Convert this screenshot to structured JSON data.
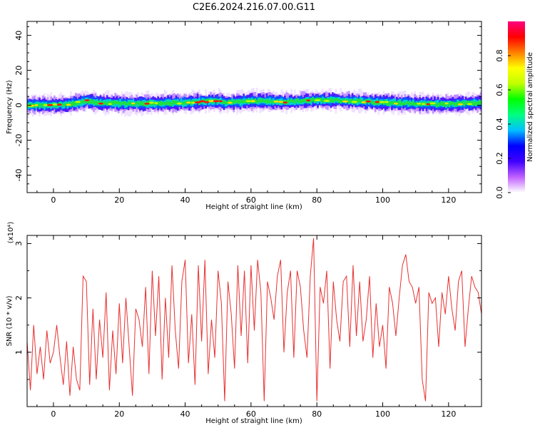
{
  "title": "C2E6.2024.216.07.00.G11",
  "chart_data": [
    {
      "type": "heatmap",
      "xlabel": "Height of straight line (km)",
      "ylabel": "Frequency (Hz)",
      "xlim": [
        -8,
        130
      ],
      "ylim": [
        -50,
        48
      ],
      "xticks": [
        "0",
        "20",
        "40",
        "60",
        "80",
        "100",
        "120"
      ],
      "xtick_values": [
        0,
        20,
        40,
        60,
        80,
        100,
        120
      ],
      "yticks": [
        "40",
        "20",
        "0",
        "-20",
        "-40"
      ],
      "ytick_values": [
        40,
        20,
        0,
        -20,
        -40
      ],
      "band_center": [
        [
          -8,
          0.0
        ],
        [
          0,
          0.0
        ],
        [
          4,
          0.5
        ],
        [
          10,
          2.5
        ],
        [
          13,
          1.5
        ],
        [
          20,
          1.0
        ],
        [
          30,
          1.0
        ],
        [
          40,
          1.5
        ],
        [
          50,
          2.5
        ],
        [
          52,
          1.5
        ],
        [
          60,
          2.5
        ],
        [
          70,
          2.0
        ],
        [
          80,
          3.0
        ],
        [
          90,
          2.5
        ],
        [
          100,
          1.5
        ],
        [
          110,
          1.0
        ],
        [
          117,
          0.5
        ],
        [
          125,
          1.0
        ],
        [
          130,
          1.5
        ]
      ],
      "colorbar": {
        "label": "Normalized spectral amplitude",
        "ticks": [
          "0.0",
          "0.2",
          "0.4",
          "0.6",
          "0.8"
        ],
        "tick_values": [
          0.0,
          0.2,
          0.4,
          0.6,
          0.8
        ],
        "range": [
          0,
          1
        ],
        "colors": [
          "#ffffff",
          "#c060ff",
          "#4000ff",
          "#0000ff",
          "#00c0ff",
          "#00ff80",
          "#00ff00",
          "#c0ff00",
          "#ffff00",
          "#ff8000",
          "#ff0000",
          "#ff0080"
        ]
      }
    },
    {
      "type": "line",
      "xlabel": "Height of straight line (km)",
      "ylabel": "SNR (10 * v/v)",
      "yunit": "(x10⁴)",
      "xlim": [
        -8,
        130
      ],
      "ylim": [
        0,
        3.15
      ],
      "xticks": [
        "0",
        "20",
        "40",
        "60",
        "80",
        "100",
        "120"
      ],
      "xtick_values": [
        0,
        20,
        40,
        60,
        80,
        100,
        120
      ],
      "yticks": [
        "1",
        "2",
        "3"
      ],
      "ytick_values": [
        1,
        2,
        3
      ],
      "color": "#e83030",
      "x": [
        -8,
        -7,
        -6,
        -5,
        -4,
        -3,
        -2,
        -1,
        0,
        1,
        2,
        3,
        4,
        5,
        6,
        7,
        8,
        9,
        10,
        11,
        12,
        13,
        14,
        15,
        16,
        17,
        18,
        19,
        20,
        21,
        22,
        23,
        24,
        25,
        26,
        27,
        28,
        29,
        30,
        31,
        32,
        33,
        34,
        35,
        36,
        37,
        38,
        39,
        40,
        41,
        42,
        43,
        44,
        45,
        46,
        47,
        48,
        49,
        50,
        51,
        52,
        53,
        54,
        55,
        56,
        57,
        58,
        59,
        60,
        61,
        62,
        63,
        64,
        65,
        66,
        67,
        68,
        69,
        70,
        71,
        72,
        73,
        74,
        75,
        76,
        77,
        78,
        79,
        80,
        81,
        82,
        83,
        84,
        85,
        86,
        87,
        88,
        89,
        90,
        91,
        92,
        93,
        94,
        95,
        96,
        97,
        98,
        99,
        100,
        101,
        102,
        103,
        104,
        105,
        106,
        107,
        108,
        109,
        110,
        111,
        112,
        113,
        114,
        115,
        116,
        117,
        118,
        119,
        120,
        121,
        122,
        123,
        124,
        125,
        126,
        127,
        128,
        129,
        130
      ],
      "values": [
        1.2,
        0.3,
        1.5,
        0.6,
        1.1,
        0.5,
        1.4,
        0.8,
        1.0,
        1.5,
        0.9,
        0.4,
        1.2,
        0.2,
        1.1,
        0.5,
        0.3,
        2.4,
        2.3,
        0.4,
        1.8,
        0.5,
        1.6,
        0.9,
        2.1,
        0.3,
        1.4,
        0.6,
        1.9,
        0.8,
        2.0,
        1.1,
        0.2,
        1.8,
        1.6,
        1.1,
        2.2,
        0.6,
        2.5,
        1.3,
        2.4,
        0.5,
        2.0,
        0.9,
        2.6,
        1.4,
        0.7,
        2.3,
        2.7,
        0.8,
        1.7,
        0.4,
        2.6,
        1.2,
        2.7,
        0.6,
        1.6,
        0.9,
        2.5,
        1.9,
        0.1,
        2.3,
        1.7,
        0.7,
        2.6,
        1.3,
        2.5,
        0.8,
        2.6,
        1.4,
        2.7,
        2.1,
        0.1,
        2.3,
        2.0,
        1.6,
        2.4,
        2.7,
        1.0,
        2.1,
        2.5,
        0.9,
        2.5,
        2.2,
        1.4,
        0.9,
        2.4,
        3.1,
        0.1,
        2.2,
        1.9,
        2.5,
        0.7,
        2.3,
        1.6,
        1.2,
        2.3,
        2.4,
        1.1,
        2.6,
        1.3,
        2.3,
        1.2,
        1.6,
        2.4,
        0.9,
        1.9,
        1.1,
        1.5,
        0.7,
        2.2,
        1.9,
        1.3,
        2.0,
        2.6,
        2.8,
        2.3,
        2.2,
        1.9,
        2.2,
        0.5,
        0.1,
        2.1,
        1.9,
        2.0,
        1.1,
        2.1,
        1.7,
        2.4,
        1.8,
        1.4,
        2.3,
        2.5,
        1.1,
        1.8,
        2.4,
        2.2,
        2.1,
        1.7
      ]
    }
  ]
}
